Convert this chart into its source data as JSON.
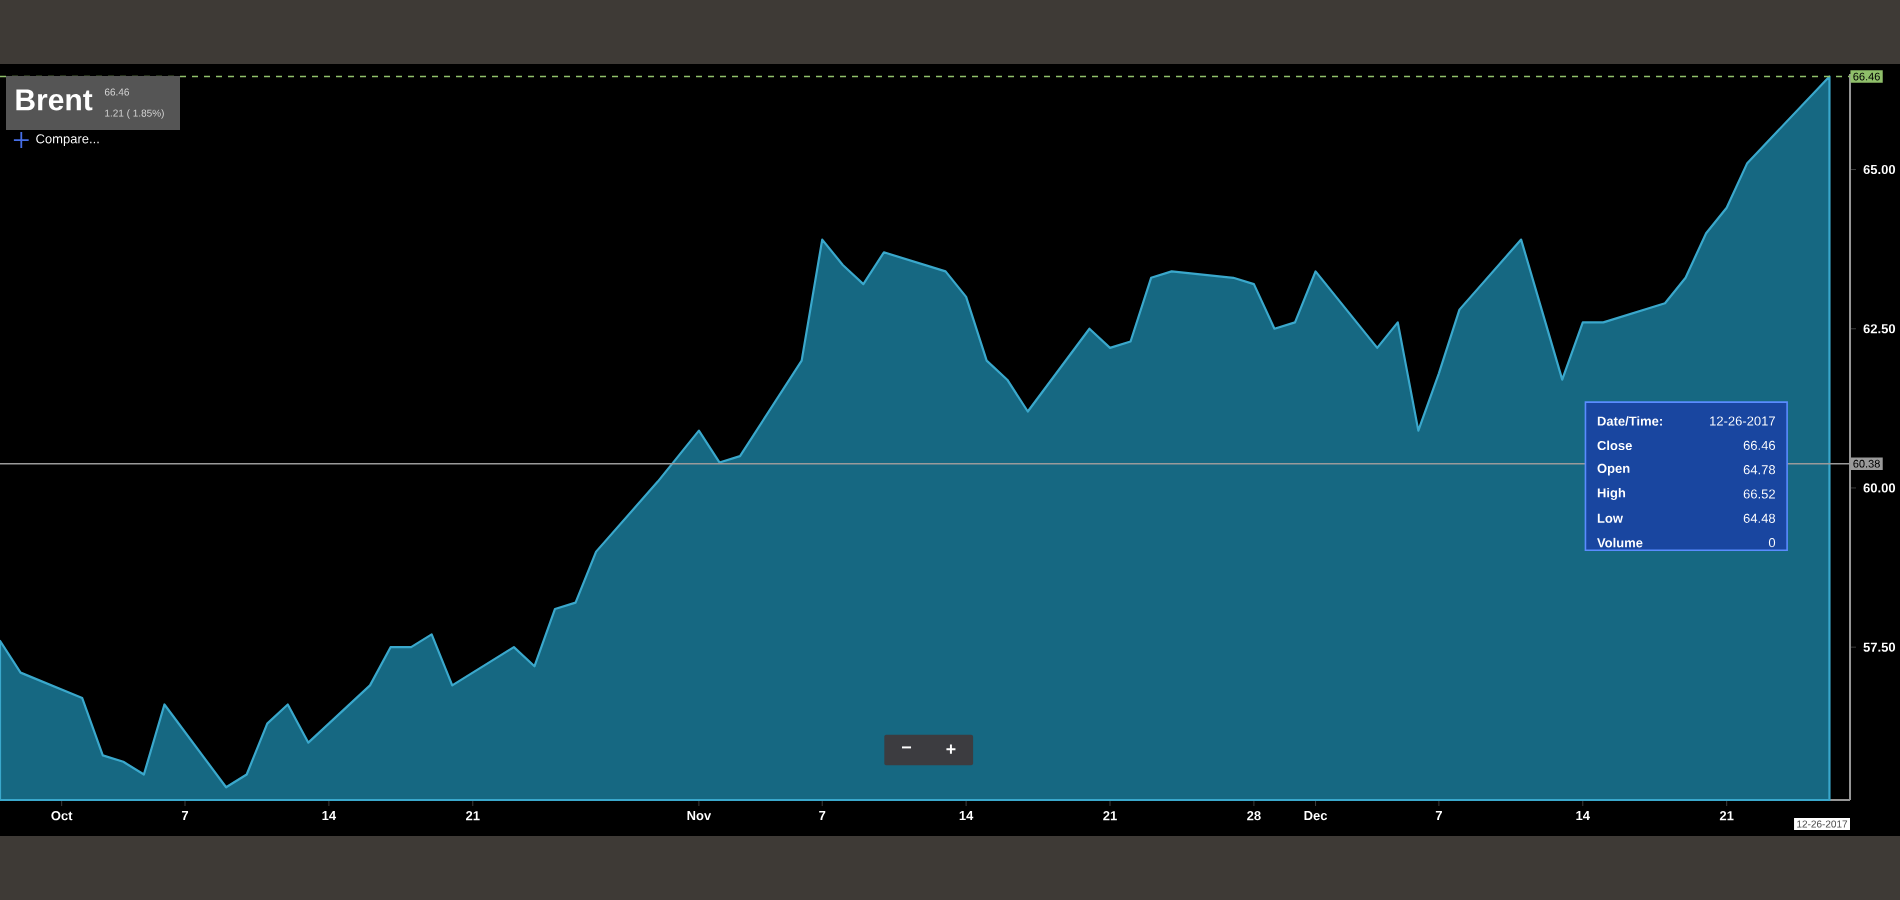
{
  "chart_data": {
    "type": "area",
    "title": "Brent",
    "subtitle": "66.46",
    "x": [
      "2017-09-28",
      "2017-09-29",
      "2017-10-02",
      "2017-10-03",
      "2017-10-04",
      "2017-10-05",
      "2017-10-06",
      "2017-10-09",
      "2017-10-10",
      "2017-10-11",
      "2017-10-12",
      "2017-10-13",
      "2017-10-16",
      "2017-10-17",
      "2017-10-18",
      "2017-10-19",
      "2017-10-20",
      "2017-10-23",
      "2017-10-24",
      "2017-10-25",
      "2017-10-26",
      "2017-10-27",
      "2017-10-30",
      "2017-10-31",
      "2017-11-01",
      "2017-11-02",
      "2017-11-03",
      "2017-11-06",
      "2017-11-07",
      "2017-11-08",
      "2017-11-09",
      "2017-11-10",
      "2017-11-13",
      "2017-11-14",
      "2017-11-15",
      "2017-11-16",
      "2017-11-17",
      "2017-11-20",
      "2017-11-21",
      "2017-11-22",
      "2017-11-23",
      "2017-11-24",
      "2017-11-27",
      "2017-11-28",
      "2017-11-29",
      "2017-11-30",
      "2017-12-01",
      "2017-12-04",
      "2017-12-05",
      "2017-12-06",
      "2017-12-07",
      "2017-12-08",
      "2017-12-11",
      "2017-12-12",
      "2017-12-13",
      "2017-12-14",
      "2017-12-15",
      "2017-12-18",
      "2017-12-19",
      "2017-12-20",
      "2017-12-21",
      "2017-12-22",
      "2017-12-26"
    ],
    "series": [
      {
        "color": "#3aa8cc",
        "values": [
          57.6,
          57.1,
          56.7,
          55.8,
          55.7,
          55.5,
          56.6,
          55.3,
          55.5,
          56.3,
          56.6,
          56.0,
          56.9,
          57.5,
          57.5,
          57.7,
          56.9,
          57.5,
          57.2,
          58.1,
          58.2,
          59.0,
          60.1,
          60.5,
          60.9,
          60.4,
          60.5,
          62.0,
          63.9,
          63.5,
          63.2,
          63.7,
          63.4,
          63.0,
          62.0,
          61.7,
          61.2,
          62.5,
          62.2,
          62.3,
          63.3,
          63.4,
          63.3,
          63.2,
          62.5,
          62.6,
          63.4,
          62.2,
          62.6,
          60.9,
          61.8,
          62.8,
          63.9,
          62.8,
          61.7,
          62.6,
          62.6,
          62.9,
          63.3,
          64.0,
          64.4,
          65.1,
          66.46
        ]
      }
    ],
    "xlim": [
      "2017-09-28",
      "2017-12-27"
    ],
    "xticks": [
      {
        "value": "2017-10-01",
        "label": "Oct"
      },
      {
        "value": "2017-10-07",
        "label": "7"
      },
      {
        "value": "2017-10-14",
        "label": "14"
      },
      {
        "value": "2017-10-21",
        "label": "21"
      },
      {
        "value": "2017-11-01",
        "label": "Nov"
      },
      {
        "value": "2017-11-07",
        "label": "7"
      },
      {
        "value": "2017-11-14",
        "label": "14"
      },
      {
        "value": "2017-11-21",
        "label": "21"
      },
      {
        "value": "2017-11-28",
        "label": "28"
      },
      {
        "value": "2017-12-01",
        "label": "Dec"
      },
      {
        "value": "2017-12-07",
        "label": "7"
      },
      {
        "value": "2017-12-14",
        "label": "14"
      },
      {
        "value": "2017-12-21",
        "label": "21"
      }
    ],
    "ylim": [
      55.1,
      66.5
    ],
    "yticks": [
      {
        "value": 57.5,
        "label": "57.50"
      },
      {
        "value": 60,
        "label": "60.00"
      },
      {
        "value": 62.5,
        "label": "62.50"
      },
      {
        "value": 65,
        "label": "65.00"
      }
    ],
    "ref_lines": [
      {
        "axis": "y",
        "value": 60.38,
        "label": "60.38",
        "color": "#9a9a9a",
        "line_style": "solid"
      },
      {
        "axis": "y",
        "value": 66.46,
        "label": "66.46",
        "color": "#8fbf6a",
        "line_style": "dashed"
      }
    ],
    "annotations": [
      "1.21 ( 1.85%)",
      "Compare...",
      "Date/Time:",
      "12-26-2017",
      "Close",
      "66.46",
      "Open",
      "64.78",
      "High",
      "66.52",
      "Low",
      "64.48",
      "Volume",
      "0",
      "12-26-2017",
      "−",
      "+"
    ]
  }
}
